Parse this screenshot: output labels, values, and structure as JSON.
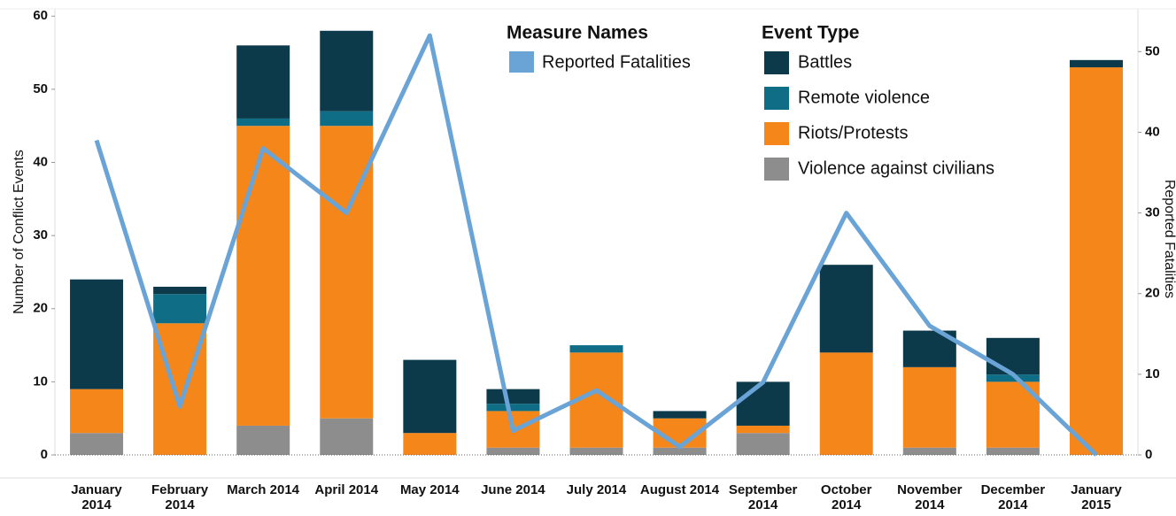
{
  "chart_data": {
    "type": "bar",
    "y_label": "Number of Conflict Events",
    "y2_label": "Reported Fatalities",
    "measure_legend_title": "Measure Names",
    "event_legend_title": "Event Type",
    "categories": [
      "January 2014",
      "February 2014",
      "March 2014",
      "April 2014",
      "May 2014",
      "June 2014",
      "July 2014",
      "August 2014",
      "September 2014",
      "October 2014",
      "November 2014",
      "December 2014",
      "January 2015"
    ],
    "series": [
      {
        "name": "Battles",
        "color": "#0c3a4b",
        "values": [
          15,
          1,
          10,
          11,
          10,
          2,
          0,
          1,
          6,
          12,
          5,
          5,
          1
        ]
      },
      {
        "name": "Remote violence",
        "color": "#0f6e86",
        "values": [
          0,
          4,
          1,
          2,
          0,
          1,
          1,
          0,
          0,
          0,
          0,
          1,
          0
        ]
      },
      {
        "name": "Riots/Protests",
        "color": "#f5861a",
        "values": [
          6,
          18,
          41,
          40,
          3,
          5,
          13,
          4,
          1,
          14,
          11,
          9,
          53
        ]
      },
      {
        "name": "Violence against civilians",
        "color": "#8d8d8d",
        "values": [
          3,
          0,
          4,
          5,
          0,
          1,
          1,
          1,
          3,
          0,
          1,
          1,
          0
        ]
      },
      {
        "name": "Reported Fatalities",
        "type": "line",
        "axis": "y2",
        "color": "#6aa3d5",
        "values": [
          39,
          6,
          38,
          30,
          52,
          3,
          8,
          1,
          9,
          30,
          16,
          10,
          0
        ]
      }
    ],
    "ylim": [
      0,
      61
    ],
    "yticks": [
      0,
      10,
      20,
      30,
      40,
      50,
      60
    ],
    "y2lim": [
      0,
      55.3
    ],
    "y2ticks": [
      0,
      10,
      20,
      30,
      40,
      50
    ],
    "grid": false
  }
}
